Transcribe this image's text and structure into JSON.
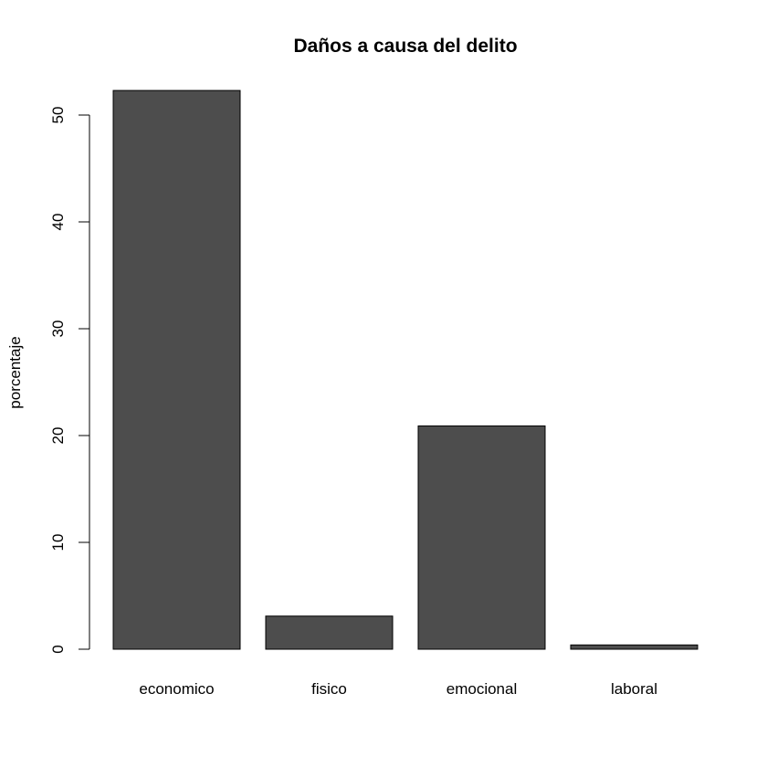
{
  "chart_data": {
    "type": "bar",
    "title": "Daños a causa del delito",
    "xlabel": "",
    "ylabel": "porcentaje",
    "categories": [
      "economico",
      "fisico",
      "emocional",
      "laboral"
    ],
    "values": [
      52.3,
      3.1,
      20.9,
      0.4
    ],
    "ylim": [
      0,
      50
    ],
    "yticks": [
      "0",
      "10",
      "20",
      "30",
      "40",
      "50"
    ],
    "grid": false,
    "bar_color": "#4d4d4d"
  }
}
